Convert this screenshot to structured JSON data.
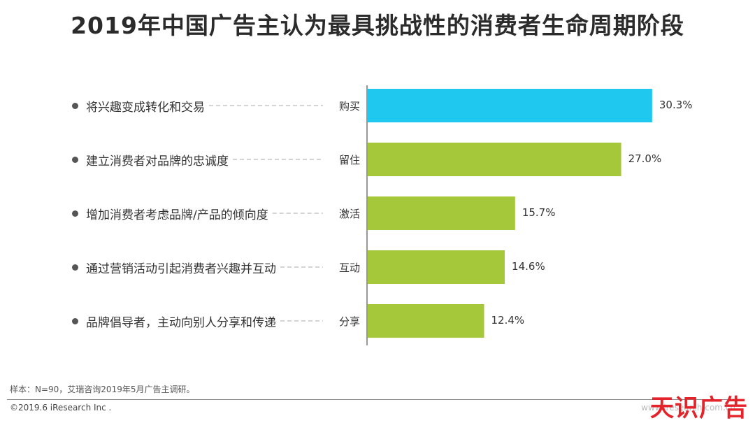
{
  "title": "2019年中国广告主认为最具挑战性的消费者生命周期阶段",
  "chart_data": {
    "type": "bar",
    "orientation": "horizontal",
    "categories": [
      "购买",
      "留住",
      "激活",
      "互动",
      "分享"
    ],
    "descriptions": [
      "将兴趣变成转化和交易",
      "建立消费者对品牌的忠诚度",
      "增加消费者考虑品牌/产品的倾向度",
      "通过营销活动引起消费者兴趣并互动",
      "品牌倡导者，主动向别人分享和传递"
    ],
    "values": [
      30.3,
      27.0,
      15.7,
      14.6,
      12.4
    ],
    "value_labels": [
      "30.3%",
      "27.0%",
      "15.7%",
      "14.6%",
      "12.4%"
    ],
    "unit": "%",
    "colors": [
      "#1fc8ef",
      "#a5c83a",
      "#a5c83a",
      "#a5c83a",
      "#a5c83a"
    ],
    "xlim": [
      0,
      35
    ],
    "grid": false,
    "legend": "none"
  },
  "note": "样本：N=90，艾瑞咨询2019年5月广告主调研。",
  "copyright": "©2019.6 iResearch Inc .",
  "watermark": "www.iresearch.com.cn",
  "logo": "天识广告"
}
